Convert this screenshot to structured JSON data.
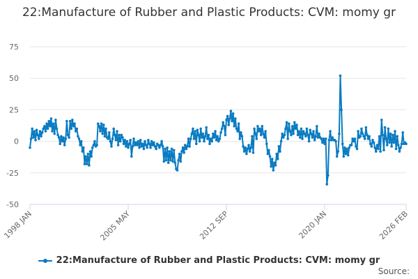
{
  "chart_data": {
    "type": "line",
    "title": "22:Manufacture of Rubber and Plastic Products: CVM: momy gr",
    "x_start": "1998-01",
    "x_end": "2026-02",
    "frequency": "monthly",
    "xtick_labels": [
      "1998 JAN",
      "2005 MAY",
      "2012 SEP",
      "2020 JAN",
      "2026 FEB"
    ],
    "xtick_months": [
      0,
      88,
      176,
      264,
      337
    ],
    "yticks": [
      75,
      50,
      25,
      0,
      -25,
      -50
    ],
    "ylim": [
      -50,
      75
    ],
    "grid": true,
    "legend_position": "bottom",
    "series": [
      {
        "name": "22:Manufacture of Rubber and Plastic Products: CVM: momy gr",
        "color": "#0a7bc1",
        "values": [
          -5,
          2,
          10,
          3,
          8,
          1,
          9,
          5,
          2,
          8,
          4,
          7,
          10,
          12,
          8,
          14,
          10,
          16,
          12,
          18,
          8,
          14,
          6,
          17,
          10,
          5,
          3,
          -2,
          4,
          0,
          3,
          -3,
          2,
          16,
          5,
          3,
          16,
          10,
          17,
          12,
          14,
          8,
          10,
          4,
          2,
          -3,
          0,
          -8,
          -5,
          -18,
          -12,
          -18,
          -10,
          -19,
          -8,
          -12,
          -5,
          -3,
          0,
          -4,
          -3,
          14,
          12,
          8,
          14,
          6,
          13,
          4,
          10,
          3,
          2,
          7,
          0,
          -4,
          2,
          10,
          5,
          1,
          8,
          -3,
          5,
          0,
          5,
          3,
          -2,
          1,
          -4,
          0,
          -5,
          -2,
          1,
          -12,
          -4,
          2,
          -3,
          -1,
          -3,
          0,
          -5,
          1,
          -4,
          -2,
          -6,
          0,
          -3,
          -5,
          1,
          -2,
          -5,
          0,
          -3,
          -1,
          -4,
          -6,
          -2,
          -3,
          -5,
          -3,
          0,
          -4,
          -16,
          -6,
          -15,
          -5,
          -17,
          -8,
          -15,
          -6,
          -16,
          -7,
          -17,
          -22,
          -23,
          -15,
          -10,
          -16,
          -8,
          -5,
          -9,
          -3,
          -6,
          -4,
          2,
          -4,
          2,
          6,
          10,
          2,
          8,
          -2,
          9,
          5,
          0,
          10,
          3,
          6,
          0,
          4,
          11,
          2,
          5,
          -2,
          2,
          0,
          6,
          3,
          8,
          1,
          4,
          0,
          2,
          7,
          10,
          15,
          12,
          5,
          17,
          20,
          13,
          18,
          24,
          16,
          22,
          12,
          18,
          10,
          8,
          14,
          2,
          7,
          4,
          -4,
          -8,
          -5,
          -10,
          -6,
          -3,
          -8,
          -5,
          4,
          -9,
          10,
          6,
          2,
          12,
          8,
          10,
          5,
          12,
          6,
          3,
          8,
          -2,
          -10,
          -7,
          -12,
          -20,
          -14,
          -23,
          -17,
          -19,
          -10,
          -14,
          -4,
          -8,
          0,
          6,
          3,
          5,
          10,
          15,
          2,
          14,
          8,
          5,
          12,
          6,
          15,
          10,
          13,
          5,
          8,
          3,
          10,
          2,
          8,
          6,
          4,
          10,
          5,
          0,
          9,
          6,
          3,
          8,
          1,
          4,
          12,
          3,
          6,
          3,
          2,
          -1,
          2,
          -2,
          2,
          -34,
          -27,
          1,
          8,
          1,
          3,
          1,
          1,
          0,
          -12,
          -8,
          6,
          52,
          25,
          -2,
          -12,
          -5,
          -10,
          -6,
          -11,
          -5,
          -3,
          -3,
          2,
          0,
          2,
          -4,
          -6,
          8,
          3,
          4,
          10,
          6,
          4,
          2,
          11,
          5,
          2,
          4,
          -2,
          -4,
          1,
          -1,
          -5,
          -8,
          -3,
          -6,
          4,
          -8,
          17,
          5,
          -7,
          11,
          2,
          -3,
          10,
          -1,
          6,
          -4,
          5,
          -1,
          8,
          -6,
          4,
          -3,
          -8,
          -5,
          -2,
          7,
          -2,
          -1,
          -2
        ]
      }
    ],
    "source_label": "Source:"
  }
}
